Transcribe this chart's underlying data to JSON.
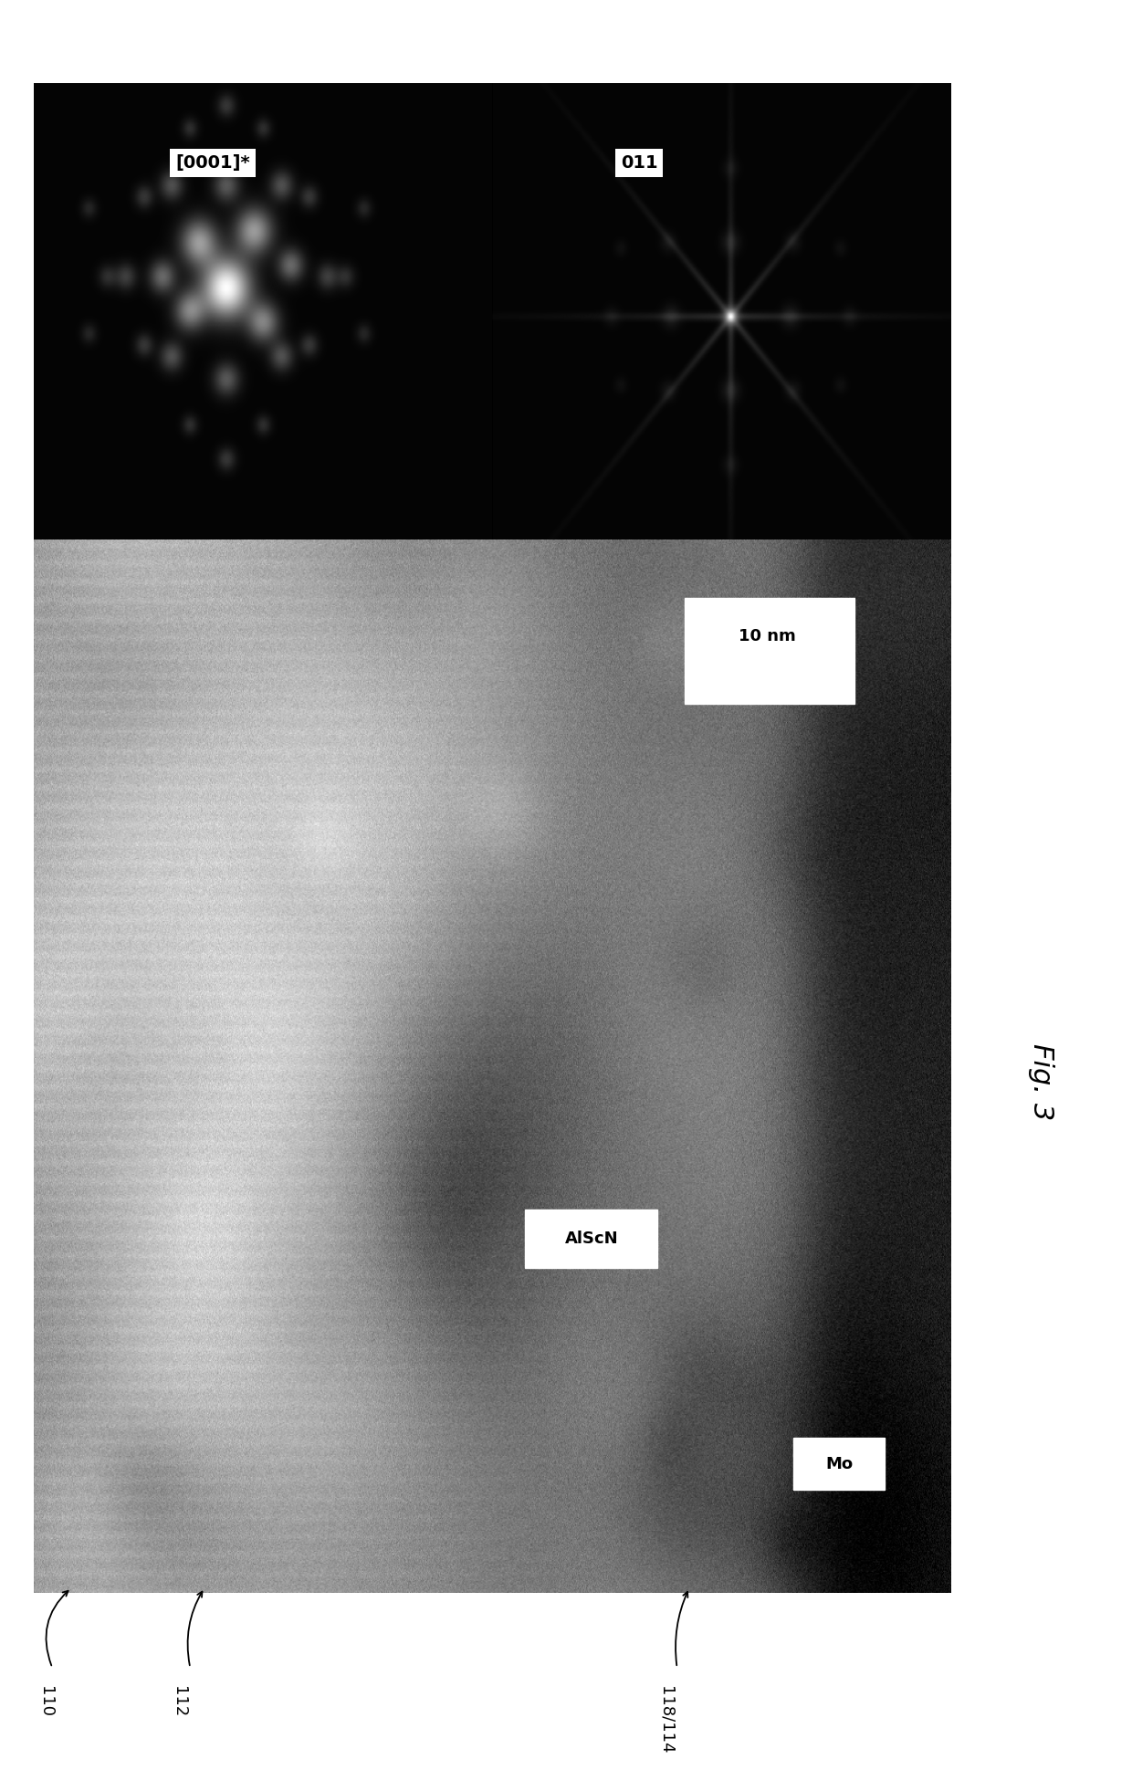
{
  "fig_label": "Fig. 3",
  "bg_color": "#ffffff",
  "label_0001": "[0001]*",
  "label_011": "011",
  "label_AlScN": "AlScN",
  "label_Mo": "Mo",
  "scale_bar_label": "10 nm",
  "bottom_labels": [
    "110",
    "112",
    "118/114"
  ],
  "figure_width": 12.4,
  "figure_height": 19.39
}
